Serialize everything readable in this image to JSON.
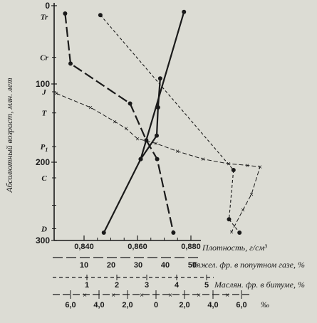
{
  "chart_data": {
    "type": "line",
    "y_axis": {
      "label": "Абсолютный возраст, млн. лет",
      "range": [
        0,
        300
      ],
      "ticks": [
        {
          "value": 0,
          "label": "0"
        },
        {
          "value": 100,
          "label": "100"
        },
        {
          "value": 200,
          "label": "200"
        },
        {
          "value": 300,
          "label": "300"
        }
      ],
      "inverted": true
    },
    "period_labels": [
      {
        "value": 14,
        "label": "Tr"
      },
      {
        "value": 66,
        "label": "Cr"
      },
      {
        "value": 110,
        "label": "J"
      },
      {
        "value": 137,
        "label": "T"
      },
      {
        "value": 180,
        "label": "P1"
      },
      {
        "value": 220,
        "label": "C"
      },
      {
        "value": 285,
        "label": "D"
      }
    ],
    "x_axes": [
      {
        "id": "density",
        "label": "Плотность, г/см³",
        "range": [
          0.83,
          0.88
        ],
        "ticks": [
          {
            "value": 0.84,
            "label": "0,840"
          },
          {
            "value": 0.86,
            "label": "0,860"
          },
          {
            "value": 0.88,
            "label": "0,880"
          }
        ]
      },
      {
        "id": "heavy",
        "label": "Тяжел. фр. в попутном газе, %",
        "range": [
          0,
          55
        ],
        "ticks": [
          {
            "value": 10,
            "label": "10"
          },
          {
            "value": 20,
            "label": "20"
          },
          {
            "value": 30,
            "label": "30"
          },
          {
            "value": 40,
            "label": "40"
          },
          {
            "value": 50,
            "label": "50"
          }
        ]
      },
      {
        "id": "oil",
        "label": "Маслян. фр. в битуме, %",
        "range": [
          0,
          5.5
        ],
        "ticks": [
          {
            "value": 1,
            "label": "1"
          },
          {
            "value": 2,
            "label": "2"
          },
          {
            "value": 3,
            "label": "3"
          },
          {
            "value": 4,
            "label": "4"
          },
          {
            "value": 5,
            "label": "5"
          }
        ]
      },
      {
        "id": "permil",
        "label": "‰",
        "range": [
          -7,
          7
        ],
        "ticks": [
          {
            "value": -6,
            "label": "6,0"
          },
          {
            "value": -4,
            "label": "4,0"
          },
          {
            "value": -2,
            "label": "2,0"
          },
          {
            "value": 0,
            "label": "0"
          },
          {
            "value": 2,
            "label": "2,0"
          },
          {
            "value": 4,
            "label": "4,0"
          },
          {
            "value": 6,
            "label": "6,0"
          }
        ]
      }
    ],
    "series": [
      {
        "axis": "density",
        "style": "solid",
        "points": [
          [
            0.8774,
            8
          ],
          [
            0.8612,
            196
          ],
          [
            0.8474,
            290
          ]
        ]
      },
      {
        "axis": "density",
        "style": "solid",
        "points": [
          [
            0.8685,
            93
          ],
          [
            0.8677,
            130
          ],
          [
            0.8672,
            166
          ],
          [
            0.8612,
            196
          ]
        ]
      },
      {
        "axis": "heavy",
        "style": "long-dash",
        "points": [
          [
            3,
            10
          ],
          [
            5,
            74
          ],
          [
            27,
            125
          ],
          [
            33,
            172
          ],
          [
            37,
            196
          ],
          [
            43,
            290
          ]
        ]
      },
      {
        "axis": "oil",
        "style": "short-dash",
        "points": [
          [
            1.45,
            12
          ],
          [
            5.9,
            210
          ],
          [
            5.75,
            273
          ],
          [
            6.1,
            290
          ]
        ]
      },
      {
        "axis": "permil",
        "style": "dash-cross",
        "points": [
          [
            -7,
            112
          ],
          [
            -4.6,
            130
          ],
          [
            -2.9,
            148
          ],
          [
            -2.1,
            157
          ],
          [
            -1.3,
            170
          ],
          [
            0,
            176
          ],
          [
            1.5,
            186
          ],
          [
            3.3,
            196
          ],
          [
            5.1,
            202
          ],
          [
            6.4,
            204
          ],
          [
            7.3,
            206
          ],
          [
            6.7,
            241
          ],
          [
            6.1,
            261
          ],
          [
            5.3,
            289
          ]
        ]
      }
    ]
  }
}
